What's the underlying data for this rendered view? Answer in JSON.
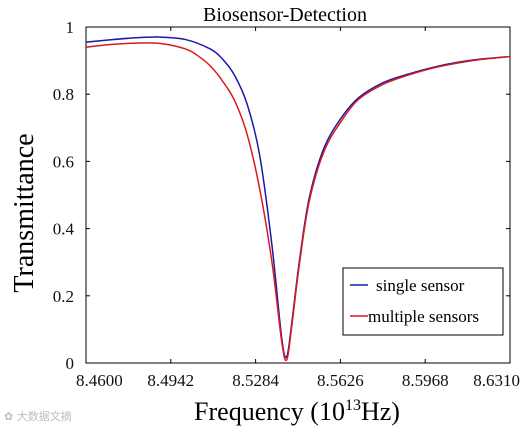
{
  "chart_data": {
    "type": "line",
    "title": "Biosensor-Detection",
    "xlabel": "Frequency (10",
    "xlabel_sup": "13",
    "xlabel_unit": "Hz)",
    "ylabel": "Transmittance",
    "xlim": [
      8.46,
      8.631
    ],
    "ylim": [
      0,
      1
    ],
    "xticks": [
      8.46,
      8.4942,
      8.5284,
      8.5626,
      8.5968,
      8.631
    ],
    "xtick_labels": [
      "8.4600",
      "8.4942",
      "8.5284",
      "8.5626",
      "8.5968",
      "8.6310"
    ],
    "yticks": [
      0,
      0.2,
      0.4,
      0.6,
      0.8,
      1
    ],
    "ytick_labels": [
      "0",
      "0.2",
      "0.4",
      "0.6",
      "0.8",
      "1"
    ],
    "grid": false,
    "legend_position": "bottom-right",
    "series": [
      {
        "name": "single sensor",
        "color": "#1a1aa6",
        "x": [
          8.46,
          8.47,
          8.48,
          8.4867,
          8.49,
          8.5,
          8.51,
          8.515,
          8.52,
          8.525,
          8.53,
          8.535,
          8.539,
          8.541,
          8.543,
          8.546,
          8.55,
          8.556,
          8.563,
          8.57,
          8.58,
          8.59,
          8.6,
          8.61,
          8.62,
          8.631
        ],
        "y": [
          0.955,
          0.962,
          0.968,
          0.97,
          0.97,
          0.963,
          0.935,
          0.905,
          0.855,
          0.77,
          0.62,
          0.35,
          0.07,
          0.02,
          0.12,
          0.3,
          0.49,
          0.64,
          0.73,
          0.79,
          0.835,
          0.86,
          0.88,
          0.895,
          0.905,
          0.912
        ]
      },
      {
        "name": "multiple sensors",
        "color": "#d81c1c",
        "x": [
          8.46,
          8.47,
          8.48,
          8.49,
          8.5,
          8.505,
          8.51,
          8.515,
          8.52,
          8.525,
          8.53,
          8.535,
          8.539,
          8.541,
          8.543,
          8.546,
          8.55,
          8.556,
          8.563,
          8.57,
          8.58,
          8.59,
          8.6,
          8.61,
          8.62,
          8.631
        ],
        "y": [
          0.94,
          0.948,
          0.952,
          0.951,
          0.935,
          0.915,
          0.885,
          0.84,
          0.78,
          0.68,
          0.52,
          0.3,
          0.06,
          0.01,
          0.11,
          0.29,
          0.48,
          0.63,
          0.72,
          0.785,
          0.83,
          0.857,
          0.878,
          0.893,
          0.904,
          0.912
        ]
      }
    ]
  },
  "watermark": "大数据文摘"
}
